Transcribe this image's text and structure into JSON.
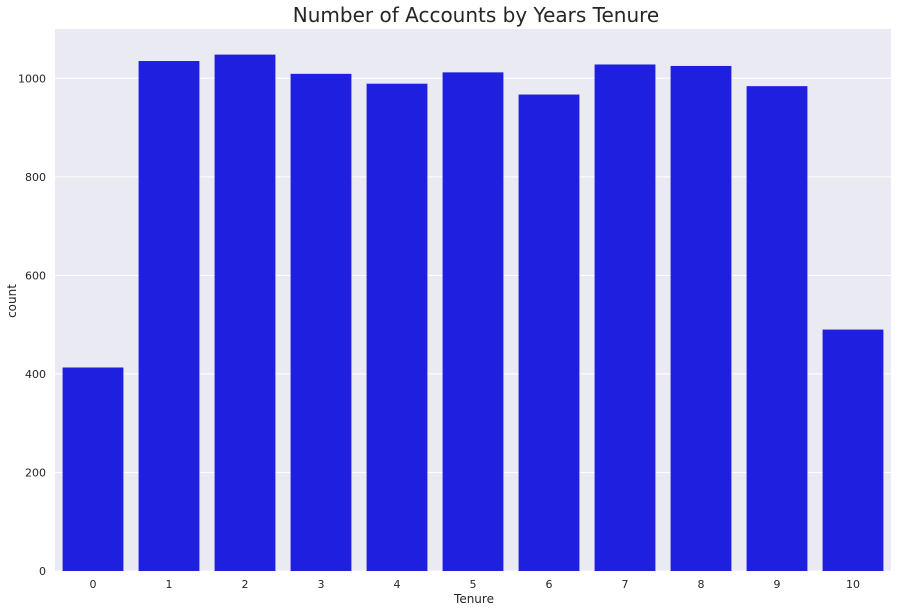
{
  "chart_data": {
    "type": "bar",
    "title": "Number of Accounts by Years Tenure",
    "xlabel": "Tenure",
    "ylabel": "count",
    "categories": [
      "0",
      "1",
      "2",
      "3",
      "4",
      "5",
      "6",
      "7",
      "8",
      "9",
      "10"
    ],
    "values": [
      413,
      1035,
      1048,
      1009,
      989,
      1012,
      967,
      1028,
      1025,
      984,
      490
    ],
    "ylim": [
      0,
      1100
    ],
    "yticks": [
      "0",
      "200",
      "400",
      "600",
      "800",
      "1000"
    ],
    "grid": true,
    "legend": "none",
    "colors": {
      "bar": "#1f1fe0",
      "plot_background": "#eaeaf2",
      "grid": "#ffffff"
    }
  }
}
